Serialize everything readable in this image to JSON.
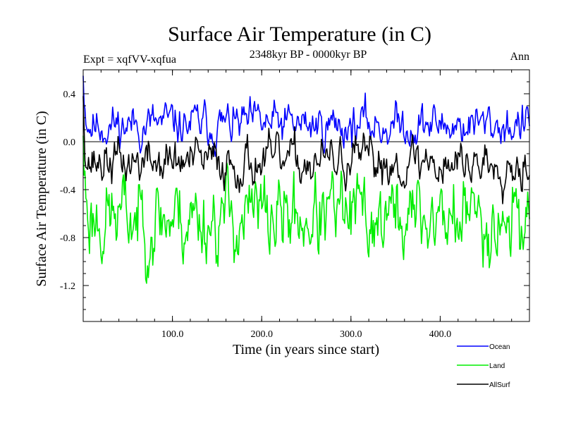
{
  "chart_data": {
    "type": "line",
    "title": "Surface Air Temperature (in C)",
    "subtitle": "2348kyr BP - 0000kyr BP",
    "left_note": "Expt = xqfVV-xqfua",
    "right_note": "Ann",
    "xlabel": "Time (in years since start)",
    "ylabel": "Surface Air Temperature (in C)",
    "xlim": [
      0,
      500
    ],
    "ylim": [
      -1.5,
      0.6
    ],
    "xticks": [
      100,
      200,
      300,
      400
    ],
    "xtick_labels": [
      "100.0",
      "200.0",
      "300.0",
      "400.0"
    ],
    "yticks": [
      0.4,
      0.0,
      -0.4,
      -0.8,
      -1.2
    ],
    "ytick_labels": [
      "0.4",
      "0.0",
      "-0.4",
      "-0.8",
      "-1.2"
    ],
    "zero_line": true,
    "series": [
      {
        "name": "Ocean",
        "color": "#0000ff",
        "mean": 0.14,
        "amplitude": 0.13,
        "start": 0.55,
        "seed": 11
      },
      {
        "name": "Land",
        "color": "#00ee00",
        "mean": -0.63,
        "amplitude": 0.26,
        "start": 0.05,
        "seed": 23
      },
      {
        "name": "AllSurf",
        "color": "#000000",
        "mean": -0.17,
        "amplitude": 0.14,
        "start": 0.38,
        "seed": 37
      }
    ]
  }
}
